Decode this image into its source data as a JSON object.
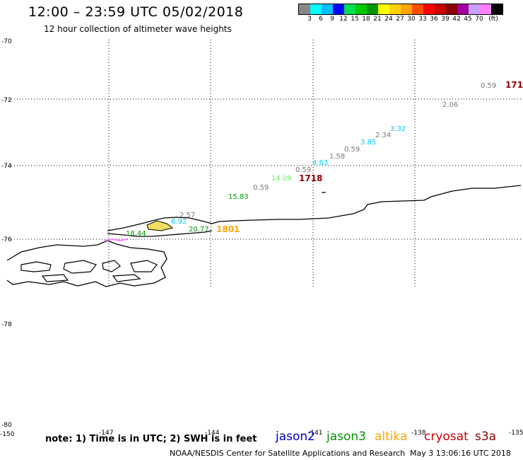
{
  "header": {
    "title": "12:00 – 23:59 UTC 05/02/2018",
    "subtitle": "12 hour collection of altimeter wave heights"
  },
  "colorbar": {
    "colors": [
      "#888888",
      "#00ffff",
      "#00bfff",
      "#0000ff",
      "#00e050",
      "#00c800",
      "#009600",
      "#ffff00",
      "#ffd000",
      "#ffa500",
      "#ff5000",
      "#ff0000",
      "#c80000",
      "#8b0000",
      "#a000a0",
      "#c8a0ff",
      "#ff80ff",
      "#000000"
    ],
    "labels": [
      "3",
      "6",
      "9",
      "12",
      "15",
      "18",
      "21",
      "24",
      "27",
      "30",
      "33",
      "36",
      "39",
      "42",
      "45",
      "70",
      "(ft)"
    ]
  },
  "map": {
    "lat_labels": [
      "-70",
      "-72",
      "-74",
      "-76",
      "-78",
      "-80"
    ],
    "lon_labels": [
      "-150",
      "-147",
      "-144",
      "-141",
      "-138",
      "-135"
    ]
  },
  "points": [
    {
      "label": "0.59",
      "color": "#777777"
    },
    {
      "label": "171",
      "color": "#8b0000"
    },
    {
      "label": "2.06",
      "color": "#777777"
    },
    {
      "label": "3.32",
      "color": "#00ccff"
    },
    {
      "label": "2.34",
      "color": "#777777"
    },
    {
      "label": "3.85",
      "color": "#00ccff"
    },
    {
      "label": "0.59",
      "color": "#777777"
    },
    {
      "label": "1.58",
      "color": "#777777"
    },
    {
      "label": "4.63",
      "color": "#00ccff"
    },
    {
      "label": "0.59",
      "color": "#777777"
    },
    {
      "label": "1718",
      "color": "#8b0000"
    },
    {
      "label": "14.09",
      "color": "#66ee66"
    },
    {
      "label": "0.59",
      "color": "#777777"
    },
    {
      "label": "15.83",
      "color": "#00a000"
    },
    {
      "label": "2.57",
      "color": "#777777"
    },
    {
      "label": "6.92",
      "color": "#00bfff"
    },
    {
      "label": "20.77",
      "color": "#009600"
    },
    {
      "label": "1801",
      "color": "#ffa500"
    },
    {
      "label": "18.44",
      "color": "#009600"
    }
  ],
  "footer": {
    "note": "note: 1) Time is in UTC; 2) SWH is in feet",
    "credit": "NOAA/NESDIS Center for Satellite Applications and Research",
    "timestamp": "May  3 13:06:16 UTC 2018"
  },
  "legend": [
    {
      "name": "jason2",
      "color": "#0000cc"
    },
    {
      "name": "jason3",
      "color": "#009600"
    },
    {
      "name": "altika",
      "color": "#ffa500"
    },
    {
      "name": "cryosat",
      "color": "#cc0000"
    },
    {
      "name": "s3a",
      "color": "#8b0000"
    }
  ]
}
